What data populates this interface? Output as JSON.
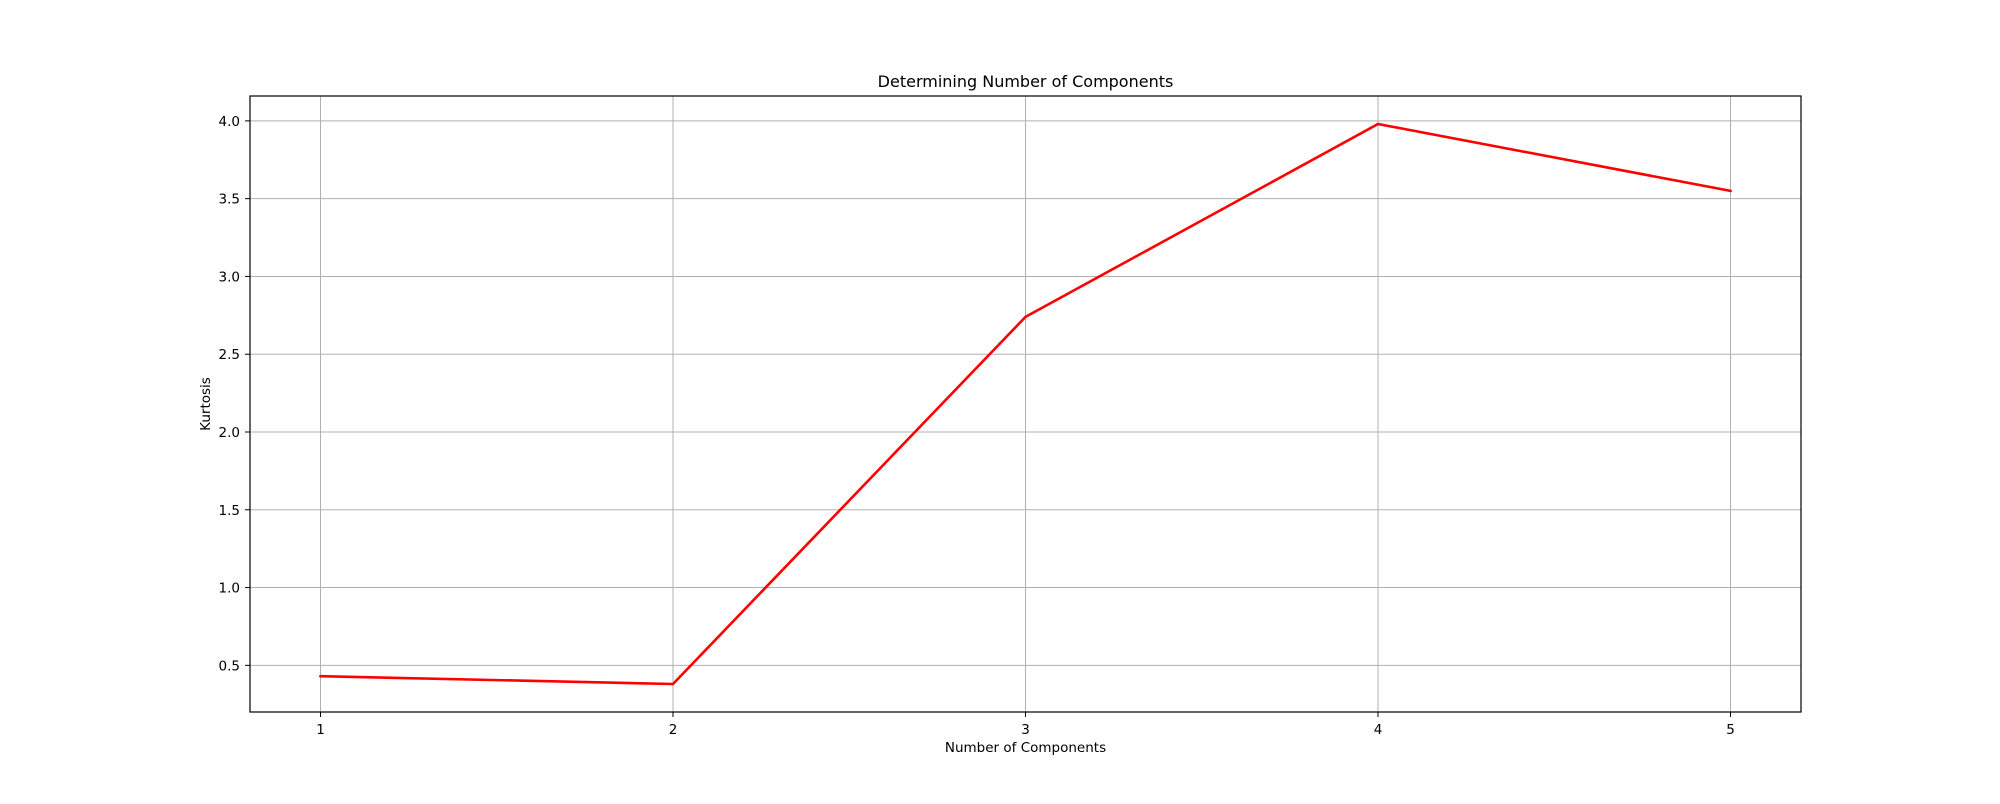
{
  "chart_data": {
    "type": "line",
    "title": "Determining Number of Components",
    "xlabel": "Number of Components",
    "ylabel": "Kurtosis",
    "x": [
      1,
      2,
      3,
      4,
      5
    ],
    "series": [
      {
        "name": "Kurtosis",
        "values": [
          0.43,
          0.38,
          2.74,
          3.98,
          3.55
        ],
        "color": "#ff0000"
      }
    ],
    "xlim": [
      0.8,
      5.2
    ],
    "ylim": [
      0.2,
      4.16
    ],
    "xticks": [
      1,
      2,
      3,
      4,
      5
    ],
    "xtick_labels": [
      "1",
      "2",
      "3",
      "4",
      "5"
    ],
    "yticks": [
      0.5,
      1.0,
      1.5,
      2.0,
      2.5,
      3.0,
      3.5,
      4.0
    ],
    "ytick_labels": [
      "0.5",
      "1.0",
      "1.5",
      "2.0",
      "2.5",
      "3.0",
      "3.5",
      "4.0"
    ],
    "grid": true,
    "colors": {
      "grid": "#b0b0b0",
      "axes": "#000000",
      "line": "#ff0000"
    }
  }
}
